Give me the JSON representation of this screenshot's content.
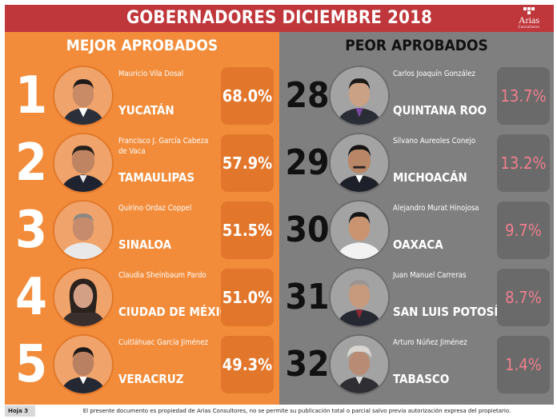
{
  "header": {
    "title": "GOBERNADORES DICIEMBRE 2018",
    "logo_name": "Arias",
    "logo_sub": "Consultores"
  },
  "colors": {
    "header_red": "#c0373b",
    "best_orange": "#f28c3a",
    "worst_gray": "#807f7f",
    "worst_pct_pink": "#f07f8e"
  },
  "best": {
    "title": "MEJOR APROBADOS",
    "rows": [
      {
        "rank": "1",
        "name": "Mauricio Vila Dosal",
        "state": "YUCATÁN",
        "pct": "68.0%"
      },
      {
        "rank": "2",
        "name": "Francisco J. García Cabeza de Vaca",
        "state": "TAMAULIPAS",
        "pct": "57.9%"
      },
      {
        "rank": "3",
        "name": "Quirino Ordaz Coppel",
        "state": "SINALOA",
        "pct": "51.5%"
      },
      {
        "rank": "4",
        "name": "Claudia Sheinbaum Pardo",
        "state": "CIUDAD DE MÉXICO",
        "pct": "51.0%"
      },
      {
        "rank": "5",
        "name": "Cuitláhuac García Jiménez",
        "state": "VERACRUZ",
        "pct": "49.3%"
      }
    ]
  },
  "worst": {
    "title": "PEOR APROBADOS",
    "rows": [
      {
        "rank": "28",
        "name": "Carlos Joaquín González",
        "state": "QUINTANA ROO",
        "pct": "13.7%"
      },
      {
        "rank": "29",
        "name": "Silvano Aureoles Conejo",
        "state": "MICHOACÁN",
        "pct": "13.2%"
      },
      {
        "rank": "30",
        "name": "Alejandro Murat Hinojosa",
        "state": "OAXACA",
        "pct": "9.7%"
      },
      {
        "rank": "31",
        "name": "Juan Manuel Carreras",
        "state": "SAN LUIS POTOSÍ",
        "pct": "8.7%"
      },
      {
        "rank": "32",
        "name": "Arturo Núñez Jiménez",
        "state": "TABASCO",
        "pct": "1.4%"
      }
    ]
  },
  "footer": {
    "page": "Hoja 3",
    "legal": "El presente documento es propiedad de Arias Consultores, no se permite su publicación total o parcial salvo previa autorización expresa del propietario."
  }
}
